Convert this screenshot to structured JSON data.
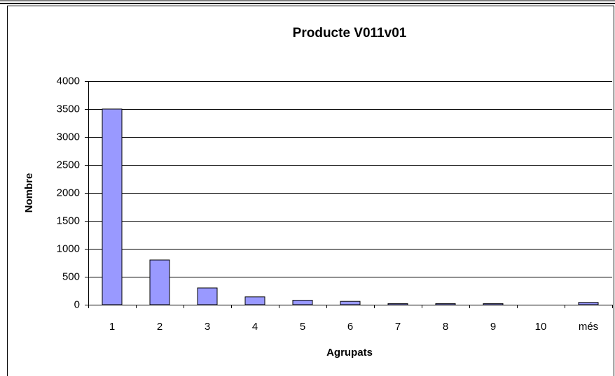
{
  "chart_data": {
    "type": "bar",
    "title": "Producte V011v01",
    "x_label": "Agrupats",
    "y_label": "Nombre",
    "categories": [
      "1",
      "2",
      "3",
      "4",
      "5",
      "6",
      "7",
      "8",
      "9",
      "10",
      "més"
    ],
    "values": [
      3500,
      800,
      300,
      140,
      80,
      60,
      20,
      20,
      20,
      0,
      40
    ],
    "color": "#9999ff",
    "ylim": [
      0,
      4000
    ],
    "yticks": [
      0,
      500,
      1000,
      1500,
      2000,
      2500,
      3000,
      3500,
      4000
    ],
    "grid": true
  }
}
